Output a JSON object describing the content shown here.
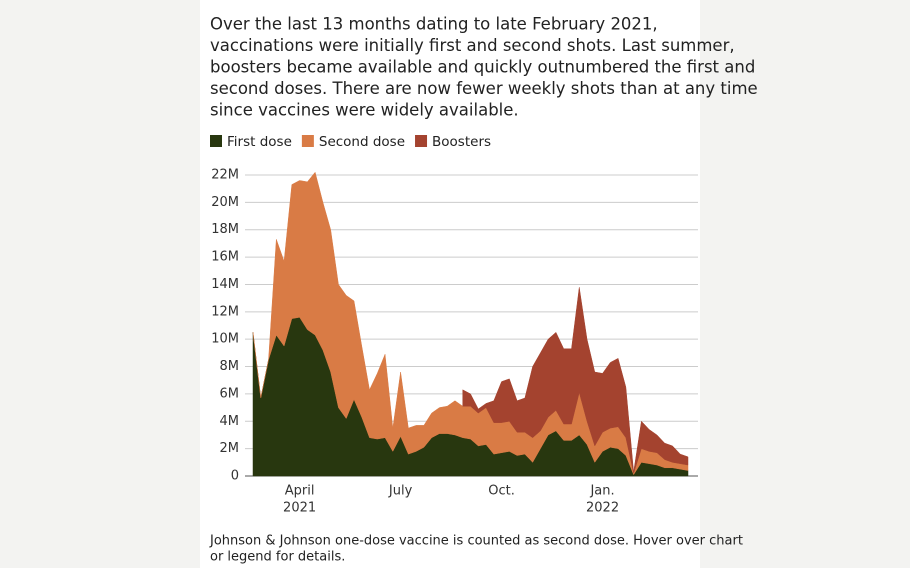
{
  "chart_data": {
    "type": "stacked_area",
    "description": [
      "Over the last 13 months dating to late February 2021,",
      "vaccinations were initially first and second shots. Last summer,",
      "boosters became available and quickly outnumbered the first and",
      "second doses. There are now fewer weekly shots than at any time",
      "since vaccines were widely available."
    ],
    "footnote": [
      "Johnson & Johnson one-dose vaccine is counted as second dose. Hover over chart",
      "or legend for details."
    ],
    "categories": [
      null,
      null,
      null,
      null,
      null,
      null,
      [
        "April",
        "2021"
      ],
      null,
      null,
      null,
      null,
      null,
      null,
      null,
      null,
      null,
      null,
      null,
      null,
      [
        "July"
      ],
      null,
      null,
      null,
      null,
      null,
      null,
      null,
      null,
      null,
      null,
      null,
      null,
      [
        "Oct."
      ],
      null,
      null,
      null,
      null,
      null,
      null,
      null,
      null,
      null,
      null,
      null,
      null,
      [
        "Jan.",
        "2022"
      ],
      null,
      null,
      null,
      null,
      null,
      null,
      null,
      null,
      null,
      null,
      null
    ],
    "series": [
      {
        "name": "First dose",
        "color": "#28370f",
        "values": [
          10.5,
          5.7,
          8.5,
          10.3,
          9.5,
          11.5,
          11.6,
          10.7,
          10.3,
          9.2,
          7.6,
          5.0,
          4.2,
          5.6,
          4.3,
          2.8,
          2.7,
          2.8,
          1.8,
          2.9,
          1.6,
          1.8,
          2.1,
          2.8,
          3.1,
          3.1,
          3.0,
          2.8,
          2.7,
          2.2,
          2.3,
          1.6,
          1.7,
          1.8,
          1.5,
          1.6,
          1.0,
          2.0,
          3.0,
          3.3,
          2.6,
          2.6,
          3.0,
          2.3,
          1.0,
          1.8,
          2.1,
          2.0,
          1.5,
          0.1,
          1.0,
          0.9,
          0.8,
          0.6,
          0.6,
          0.5,
          0.4
        ]
      },
      {
        "name": "Second dose",
        "color": "#d97b45",
        "values": [
          0,
          0,
          0,
          7.0,
          6.2,
          9.8,
          10.0,
          10.8,
          11.9,
          10.8,
          10.4,
          9.0,
          9.0,
          7.2,
          5.2,
          3.5,
          4.8,
          6.1,
          1.7,
          4.7,
          1.9,
          1.9,
          1.6,
          1.8,
          1.9,
          2.0,
          2.5,
          2.3,
          2.4,
          2.4,
          2.7,
          2.3,
          2.2,
          2.2,
          1.7,
          1.6,
          1.8,
          1.3,
          1.3,
          1.5,
          1.2,
          1.2,
          3.1,
          1.7,
          1.2,
          1.4,
          1.4,
          1.6,
          1.3,
          0.1,
          1.0,
          0.9,
          0.9,
          0.6,
          0.4,
          0.4,
          0.4
        ]
      },
      {
        "name": "Boosters",
        "color": "#a4432f",
        "values": [
          null,
          null,
          null,
          null,
          null,
          null,
          null,
          null,
          null,
          null,
          null,
          null,
          null,
          null,
          null,
          null,
          null,
          null,
          null,
          null,
          null,
          null,
          null,
          null,
          null,
          null,
          null,
          1.2,
          0.9,
          0.3,
          0.3,
          1.6,
          3.0,
          3.1,
          2.3,
          2.5,
          5.2,
          5.7,
          5.7,
          5.7,
          5.5,
          5.5,
          7.7,
          6.0,
          5.4,
          4.3,
          4.8,
          5.0,
          3.7,
          0.1,
          2.0,
          1.6,
          1.3,
          1.2,
          1.2,
          0.7,
          0.6
        ]
      }
    ],
    "ylim": [
      0,
      22
    ],
    "yticks": [
      0,
      {
        "value": 2,
        "label": "2M"
      },
      {
        "value": 4,
        "label": "4M"
      },
      {
        "value": 6,
        "label": "6M"
      },
      {
        "value": 8,
        "label": "8M"
      },
      {
        "value": 10,
        "label": "10M"
      },
      {
        "value": 12,
        "label": "12M"
      },
      {
        "value": 14,
        "label": "14M"
      },
      {
        "value": 16,
        "label": "16M"
      },
      {
        "value": 18,
        "label": "18M"
      },
      {
        "value": 20,
        "label": "20M"
      },
      {
        "value": 22,
        "label": "22M"
      }
    ],
    "grid": true
  }
}
